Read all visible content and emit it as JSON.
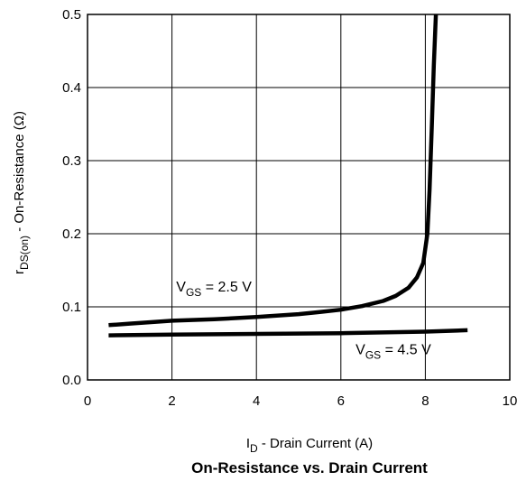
{
  "chart_data": {
    "type": "line",
    "title": "On-Resistance vs. Drain Current",
    "xlabel": {
      "main": "I",
      "sub": "D",
      "rest": " - Drain Current (A)"
    },
    "ylabel": {
      "main": "r",
      "sub": "DS(on)",
      "rest": "  - On-Resistance (Ω)"
    },
    "xlim": [
      0,
      10
    ],
    "ylim": [
      0,
      0.5
    ],
    "xticks": [
      0,
      2,
      4,
      6,
      8,
      10
    ],
    "yticks": [
      0.0,
      0.1,
      0.2,
      0.3,
      0.4,
      0.5
    ],
    "xtick_labels": [
      "0",
      "2",
      "4",
      "6",
      "8",
      "10"
    ],
    "ytick_labels": [
      "0.0",
      "0.1",
      "0.2",
      "0.3",
      "0.4",
      "0.5"
    ],
    "grid": true,
    "series": [
      {
        "name": "VGS = 2.5 V",
        "label": {
          "main": "V",
          "sub": "GS",
          "rest": " = 2.5 V"
        },
        "x": [
          0.5,
          1.0,
          2.0,
          3.0,
          4.0,
          5.0,
          5.5,
          6.0,
          6.5,
          7.0,
          7.3,
          7.6,
          7.8,
          7.95,
          8.05,
          8.1,
          8.15,
          8.2,
          8.25
        ],
        "y": [
          0.075,
          0.077,
          0.081,
          0.083,
          0.086,
          0.09,
          0.093,
          0.096,
          0.101,
          0.108,
          0.115,
          0.126,
          0.14,
          0.16,
          0.2,
          0.26,
          0.34,
          0.43,
          0.5
        ]
      },
      {
        "name": "VGS = 4.5 V",
        "label": {
          "main": "V",
          "sub": "GS",
          "rest": " = 4.5 V"
        },
        "x": [
          0.5,
          2.0,
          4.0,
          6.0,
          8.0,
          9.0
        ],
        "y": [
          0.061,
          0.062,
          0.063,
          0.064,
          0.066,
          0.068
        ]
      }
    ]
  }
}
